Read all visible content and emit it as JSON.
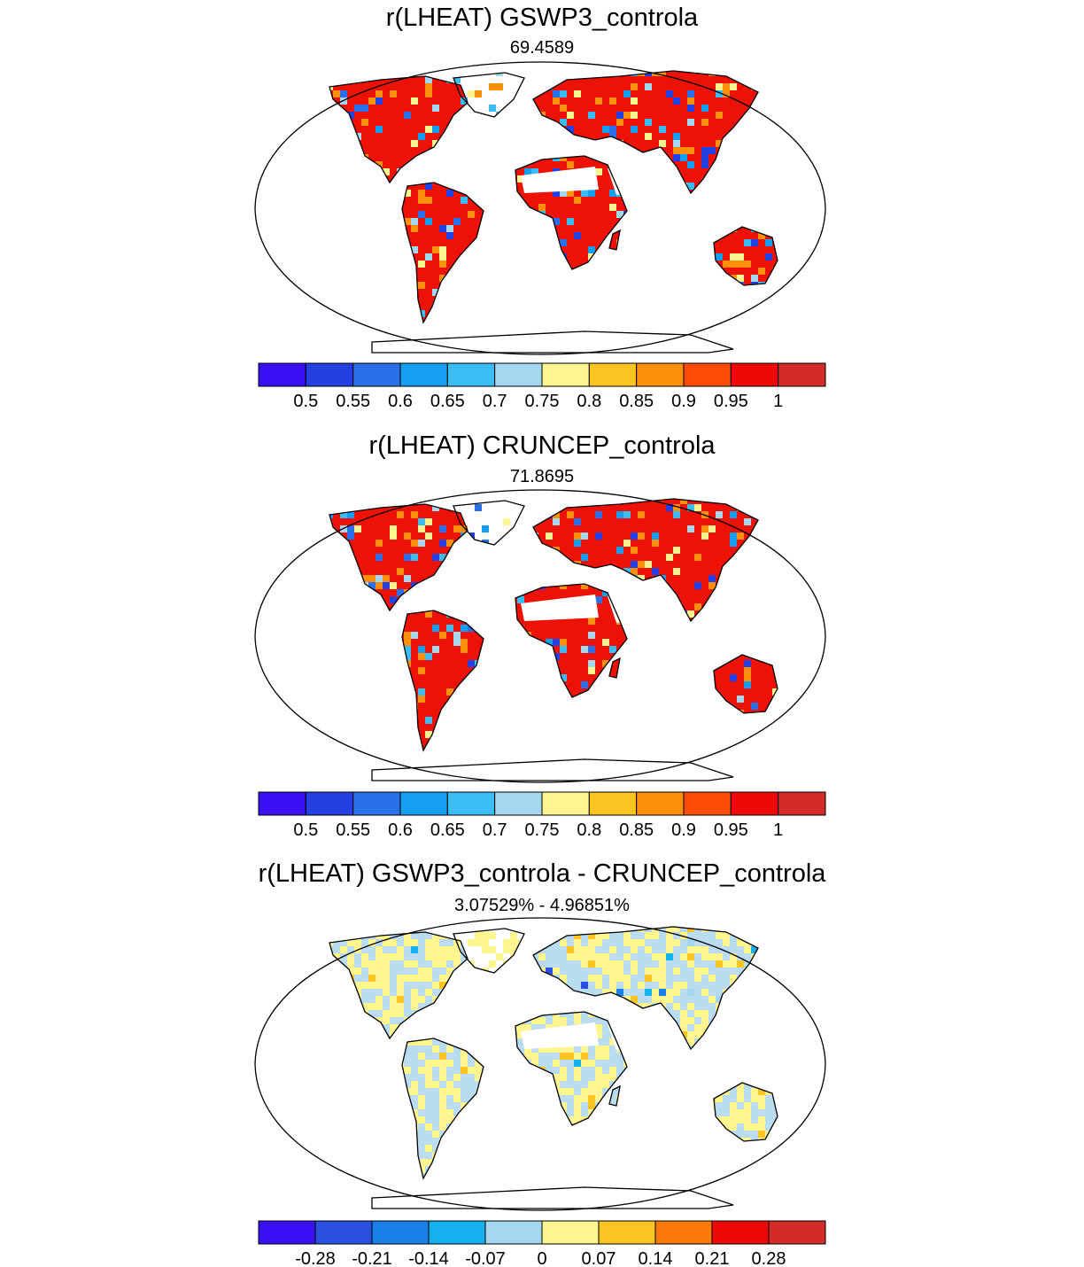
{
  "panels": [
    {
      "title": "r(LHEAT) GSWP3_controla",
      "subtitle": "69.4589",
      "colorbar": {
        "colors": [
          "#3a10f5",
          "#2540e0",
          "#2a70e8",
          "#169ef0",
          "#3cbcf5",
          "#a5d8f0",
          "#fff590",
          "#fcc420",
          "#fd8f0a",
          "#fd4c08",
          "#ee0808",
          "#d42a2a"
        ],
        "labels": [
          "0.5",
          "0.55",
          "0.6",
          "0.65",
          "0.7",
          "0.75",
          "0.8",
          "0.85",
          "0.9",
          "0.95",
          "1"
        ]
      },
      "fill": "#ee1106"
    },
    {
      "title": "r(LHEAT) CRUNCEP_controla",
      "subtitle": "71.8695",
      "colorbar": {
        "colors": [
          "#3a10f5",
          "#2540e0",
          "#2a70e8",
          "#169ef0",
          "#3cbcf5",
          "#a5d8f0",
          "#fff590",
          "#fcc420",
          "#fd8f0a",
          "#fd4c08",
          "#ee0808",
          "#d42a2a"
        ],
        "labels": [
          "0.5",
          "0.55",
          "0.6",
          "0.65",
          "0.7",
          "0.75",
          "0.8",
          "0.85",
          "0.9",
          "0.95",
          "1"
        ]
      },
      "fill": "#ee1106"
    },
    {
      "title": "r(LHEAT) GSWP3_controla - CRUNCEP_controla",
      "subtitle": "3.07529% - 4.96851%",
      "colorbar": {
        "colors": [
          "#3a10f5",
          "#2a50e0",
          "#1a80e8",
          "#15b0f0",
          "#a5d8f0",
          "#fff590",
          "#fcc420",
          "#fd7a0a",
          "#ee0808",
          "#d42a2a"
        ],
        "labels": [
          "-0.28",
          "-0.21",
          "-0.14",
          "-0.07",
          "0",
          "0.07",
          "0.14",
          "0.21",
          "0.28"
        ]
      },
      "fill": "#b9dcef"
    }
  ],
  "colors": {
    "desert": "#ffffff",
    "accent_yellow": "#fff590",
    "accent_blue": "#2a70e8"
  }
}
